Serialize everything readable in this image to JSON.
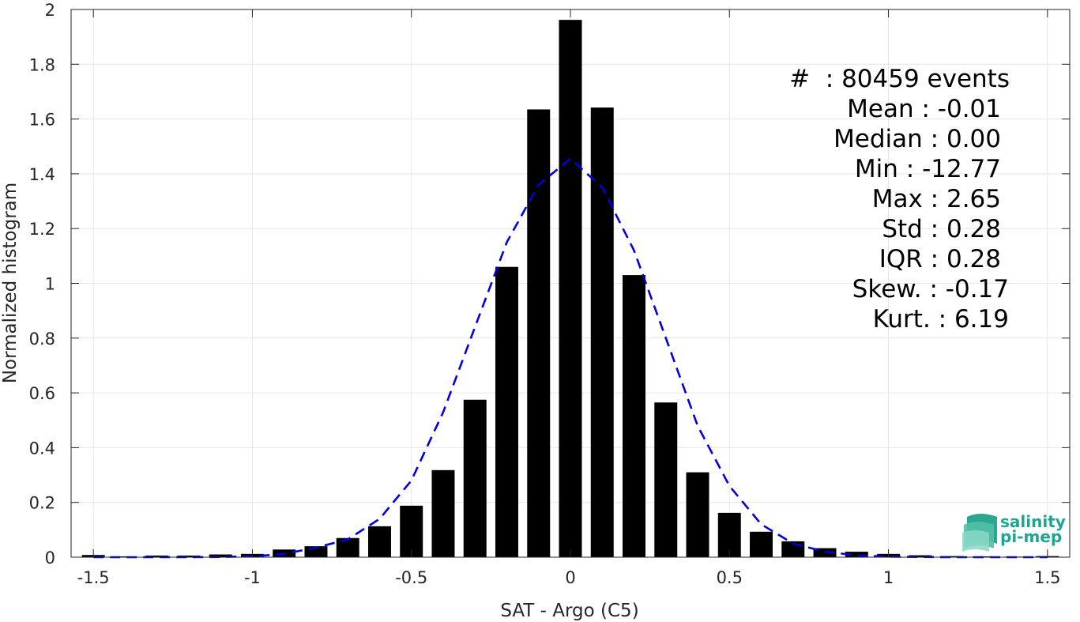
{
  "chart_data": {
    "type": "bar",
    "title": "",
    "xlabel": "SAT - Argo (C5)",
    "ylabel": "Normalized histogram",
    "xlim": [
      -1.57,
      1.57
    ],
    "ylim": [
      0,
      2
    ],
    "x_ticks": [
      "-1.5",
      "-1",
      "-0.5",
      "0",
      "0.5",
      "1",
      "1.5"
    ],
    "x_tick_values": [
      -1.5,
      -1,
      -0.5,
      0,
      0.5,
      1,
      1.5
    ],
    "y_ticks": [
      "0",
      "0.2",
      "0.4",
      "0.6",
      "0.8",
      "1",
      "1.2",
      "1.4",
      "1.6",
      "1.8",
      "2"
    ],
    "y_tick_values": [
      0,
      0.2,
      0.4,
      0.6,
      0.8,
      1,
      1.2,
      1.4,
      1.6,
      1.8,
      2
    ],
    "grid": true,
    "bar_color": "#000000",
    "bin_width": 0.1,
    "bins": {
      "x": [
        -1.5,
        -1.4,
        -1.3,
        -1.2,
        -1.1,
        -1.0,
        -0.9,
        -0.8,
        -0.7,
        -0.6,
        -0.5,
        -0.4,
        -0.3,
        -0.2,
        -0.1,
        0.0,
        0.1,
        0.2,
        0.3,
        0.4,
        0.5,
        0.6,
        0.7,
        0.8,
        0.9,
        1.0,
        1.1,
        1.2,
        1.3,
        1.4,
        1.5
      ],
      "values": [
        0.008,
        0.003,
        0.006,
        0.006,
        0.01,
        0.012,
        0.028,
        0.04,
        0.07,
        0.113,
        0.188,
        0.318,
        0.575,
        1.06,
        1.635,
        1.962,
        1.642,
        1.03,
        0.565,
        0.31,
        0.162,
        0.093,
        0.058,
        0.033,
        0.02,
        0.012,
        0.007,
        0.004,
        0.003,
        0.002,
        0.004
      ]
    },
    "fit": {
      "style": "dashed",
      "color": "#0000dd",
      "x": [
        -1.5,
        -1.4,
        -1.3,
        -1.2,
        -1.1,
        -1.0,
        -0.9,
        -0.8,
        -0.7,
        -0.6,
        -0.5,
        -0.4,
        -0.3,
        -0.2,
        -0.1,
        0.0,
        0.1,
        0.2,
        0.3,
        0.4,
        0.5,
        0.6,
        0.7,
        0.8,
        0.9,
        1.0,
        1.1,
        1.2,
        1.3,
        1.4,
        1.5
      ],
      "y": [
        0.0,
        0.0,
        0.0,
        0.0,
        0.001,
        0.003,
        0.012,
        0.035,
        0.065,
        0.14,
        0.28,
        0.53,
        0.84,
        1.15,
        1.36,
        1.455,
        1.35,
        1.12,
        0.8,
        0.48,
        0.26,
        0.12,
        0.05,
        0.02,
        0.007,
        0.002,
        0.001,
        0.0,
        0.0,
        0.0,
        0.0
      ]
    }
  },
  "stats": {
    "lines": [
      "#  : 80459 events",
      "Mean : -0.01",
      "Median : 0.00",
      "Min : -12.77",
      "Max : 2.65",
      "Std : 0.28",
      "IQR : 0.28",
      "Skew. : -0.17",
      "Kurt. : 6.19"
    ]
  },
  "logo": {
    "line1": "salinity",
    "line2": "pi-mep",
    "icon": "salinity-wave-icon",
    "color": "#1fa58f"
  }
}
